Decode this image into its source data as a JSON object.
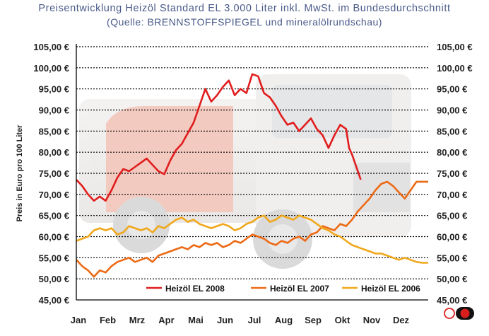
{
  "chart_data": {
    "type": "line",
    "title": "Preisentwicklung Heizöl Standard EL 3.000 Liter inkl. MwSt. im Bundesdurchschnitt",
    "subtitle": "(Quelle: BRENNSTOFFSPIEGEL und mineralölrundschau)",
    "xlabel": "",
    "ylabel": "Preis in Euro pro 100 Liter",
    "ylim": [
      45,
      105
    ],
    "y_ticks": [
      "45,00 €",
      "50,00 €",
      "55,00 €",
      "60,00 €",
      "65,00 €",
      "70,00 €",
      "75,00 €",
      "80,00 €",
      "85,00 €",
      "90,00 €",
      "95,00 €",
      "100,00 €",
      "105,00 €"
    ],
    "categories": [
      "Jan",
      "Feb",
      "Mrz",
      "Apr",
      "Mai",
      "Jun",
      "Jul",
      "Aug",
      "Sep",
      "Okt",
      "Nov",
      "Dez"
    ],
    "grid": true,
    "legend_position": "bottom",
    "series": [
      {
        "name": "Heizöl EL 2008",
        "color": "#e11d1d",
        "points": [
          [
            0.0,
            73.5
          ],
          [
            0.2,
            72.0
          ],
          [
            0.4,
            70.0
          ],
          [
            0.6,
            68.5
          ],
          [
            0.8,
            69.5
          ],
          [
            1.0,
            68.5
          ],
          [
            1.2,
            71.0
          ],
          [
            1.4,
            74.0
          ],
          [
            1.6,
            76.0
          ],
          [
            1.8,
            75.5
          ],
          [
            2.0,
            76.5
          ],
          [
            2.2,
            77.5
          ],
          [
            2.4,
            78.5
          ],
          [
            2.6,
            77.0
          ],
          [
            2.8,
            75.5
          ],
          [
            3.0,
            74.8
          ],
          [
            3.2,
            78.0
          ],
          [
            3.4,
            80.5
          ],
          [
            3.6,
            82.0
          ],
          [
            3.8,
            84.5
          ],
          [
            4.0,
            87.0
          ],
          [
            4.2,
            91.0
          ],
          [
            4.4,
            95.0
          ],
          [
            4.6,
            92.0
          ],
          [
            4.8,
            93.5
          ],
          [
            5.0,
            95.5
          ],
          [
            5.2,
            97.0
          ],
          [
            5.4,
            93.5
          ],
          [
            5.6,
            95.0
          ],
          [
            5.8,
            94.0
          ],
          [
            6.0,
            98.5
          ],
          [
            6.2,
            98.0
          ],
          [
            6.4,
            94.0
          ],
          [
            6.6,
            93.0
          ],
          [
            6.8,
            91.0
          ],
          [
            7.0,
            88.5
          ],
          [
            7.2,
            86.5
          ],
          [
            7.4,
            87.0
          ],
          [
            7.6,
            85.0
          ],
          [
            7.8,
            86.5
          ],
          [
            8.0,
            88.0
          ],
          [
            8.2,
            85.5
          ],
          [
            8.4,
            84.0
          ],
          [
            8.6,
            81.0
          ],
          [
            8.8,
            84.0
          ],
          [
            9.0,
            86.5
          ],
          [
            9.2,
            85.5
          ],
          [
            9.3,
            81.0
          ],
          [
            9.4,
            79.5
          ],
          [
            9.55,
            76.5
          ],
          [
            9.7,
            73.5
          ]
        ]
      },
      {
        "name": "Heizöl EL 2007",
        "color": "#ec6a16",
        "points": [
          [
            0.0,
            54.5
          ],
          [
            0.2,
            53.0
          ],
          [
            0.4,
            52.0
          ],
          [
            0.6,
            50.5
          ],
          [
            0.8,
            52.0
          ],
          [
            1.0,
            51.5
          ],
          [
            1.2,
            53.0
          ],
          [
            1.4,
            54.0
          ],
          [
            1.6,
            54.5
          ],
          [
            1.8,
            55.0
          ],
          [
            2.0,
            54.0
          ],
          [
            2.2,
            54.5
          ],
          [
            2.4,
            55.0
          ],
          [
            2.6,
            54.0
          ],
          [
            2.8,
            55.5
          ],
          [
            3.0,
            56.0
          ],
          [
            3.2,
            56.5
          ],
          [
            3.4,
            57.0
          ],
          [
            3.6,
            57.5
          ],
          [
            3.8,
            57.0
          ],
          [
            4.0,
            58.0
          ],
          [
            4.2,
            57.5
          ],
          [
            4.4,
            58.5
          ],
          [
            4.6,
            58.0
          ],
          [
            4.8,
            58.5
          ],
          [
            5.0,
            57.5
          ],
          [
            5.2,
            58.0
          ],
          [
            5.4,
            59.0
          ],
          [
            5.6,
            58.5
          ],
          [
            5.8,
            59.5
          ],
          [
            6.0,
            60.5
          ],
          [
            6.2,
            60.0
          ],
          [
            6.4,
            59.5
          ],
          [
            6.6,
            58.5
          ],
          [
            6.8,
            58.0
          ],
          [
            7.0,
            59.0
          ],
          [
            7.2,
            58.5
          ],
          [
            7.4,
            59.5
          ],
          [
            7.6,
            60.0
          ],
          [
            7.8,
            59.0
          ],
          [
            8.0,
            60.5
          ],
          [
            8.2,
            61.0
          ],
          [
            8.4,
            62.5
          ],
          [
            8.6,
            62.0
          ],
          [
            8.8,
            61.5
          ],
          [
            9.0,
            63.0
          ],
          [
            9.2,
            62.5
          ],
          [
            9.4,
            64.0
          ],
          [
            9.6,
            66.0
          ],
          [
            9.8,
            67.5
          ],
          [
            10.0,
            69.0
          ],
          [
            10.2,
            71.0
          ],
          [
            10.4,
            72.5
          ],
          [
            10.6,
            73.0
          ],
          [
            10.8,
            72.0
          ],
          [
            11.0,
            70.5
          ],
          [
            11.2,
            69.0
          ],
          [
            11.4,
            71.0
          ],
          [
            11.6,
            73.0
          ],
          [
            11.8,
            73.0
          ],
          [
            12.0,
            73.0
          ]
        ]
      },
      {
        "name": "Heizöl EL 2006",
        "color": "#f0a81c",
        "points": [
          [
            0.0,
            59.0
          ],
          [
            0.2,
            59.5
          ],
          [
            0.4,
            60.0
          ],
          [
            0.6,
            61.5
          ],
          [
            0.8,
            62.0
          ],
          [
            1.0,
            61.5
          ],
          [
            1.2,
            62.0
          ],
          [
            1.4,
            60.5
          ],
          [
            1.6,
            61.0
          ],
          [
            1.8,
            62.5
          ],
          [
            2.0,
            62.0
          ],
          [
            2.2,
            61.5
          ],
          [
            2.4,
            62.0
          ],
          [
            2.6,
            61.0
          ],
          [
            2.8,
            62.5
          ],
          [
            3.0,
            62.0
          ],
          [
            3.2,
            63.0
          ],
          [
            3.4,
            64.0
          ],
          [
            3.6,
            64.5
          ],
          [
            3.8,
            63.5
          ],
          [
            4.0,
            64.0
          ],
          [
            4.2,
            63.0
          ],
          [
            4.4,
            62.5
          ],
          [
            4.6,
            62.0
          ],
          [
            4.8,
            62.5
          ],
          [
            5.0,
            63.0
          ],
          [
            5.2,
            62.5
          ],
          [
            5.4,
            61.5
          ],
          [
            5.6,
            62.0
          ],
          [
            5.8,
            63.0
          ],
          [
            6.0,
            63.5
          ],
          [
            6.2,
            64.5
          ],
          [
            6.4,
            65.0
          ],
          [
            6.6,
            63.5
          ],
          [
            6.8,
            64.0
          ],
          [
            7.0,
            65.0
          ],
          [
            7.2,
            64.5
          ],
          [
            7.4,
            64.0
          ],
          [
            7.6,
            65.0
          ],
          [
            7.8,
            64.5
          ],
          [
            8.0,
            64.0
          ],
          [
            8.2,
            63.0
          ],
          [
            8.4,
            62.0
          ],
          [
            8.6,
            61.5
          ],
          [
            8.8,
            60.5
          ],
          [
            9.0,
            60.0
          ],
          [
            9.2,
            59.0
          ],
          [
            9.4,
            58.0
          ],
          [
            9.6,
            57.5
          ],
          [
            9.8,
            57.0
          ],
          [
            10.0,
            56.5
          ],
          [
            10.2,
            56.0
          ],
          [
            10.4,
            56.0
          ],
          [
            10.6,
            55.5
          ],
          [
            10.8,
            55.0
          ],
          [
            11.0,
            54.5
          ],
          [
            11.2,
            55.0
          ],
          [
            11.4,
            54.5
          ],
          [
            11.6,
            54.0
          ],
          [
            11.8,
            53.8
          ],
          [
            12.0,
            53.8
          ]
        ]
      }
    ]
  }
}
